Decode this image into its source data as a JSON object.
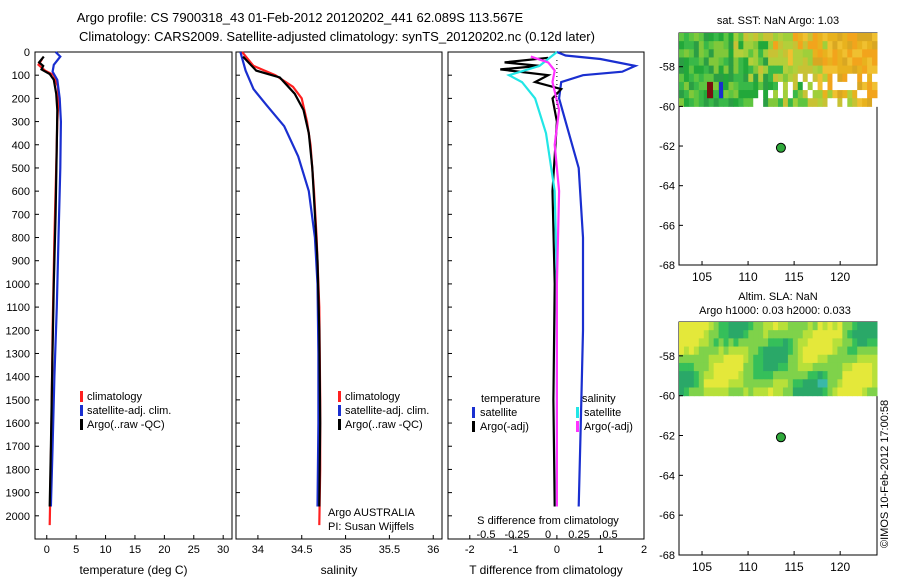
{
  "title_line1": "Argo profile: CS 7900318_43 01-Feb-2012 20120202_441 62.089S 113.567E",
  "title_line2": "Climatology: CARS2009. Satellite-adjusted climatology: synTS_20120202.nc (0.12d later)",
  "side_stamp": "©IMOS 10-Feb-2012 17:00:58",
  "colors": {
    "clim": "#ff2020",
    "sat": "#1a2fd0",
    "argo": "#000000",
    "sat_cyan": "#22e6e6",
    "argo_mag": "#ff33ff",
    "float": "#2fa83a"
  },
  "chart_data": [
    {
      "type": "line",
      "id": "temperature",
      "xlabel": "temperature (deg C)",
      "ylabel": "",
      "xlim": [
        -2,
        31.5
      ],
      "ylim": [
        2100,
        0
      ],
      "xticks": [
        0,
        5,
        10,
        15,
        20,
        25,
        30
      ],
      "yticks": [
        0,
        100,
        200,
        300,
        400,
        500,
        600,
        700,
        800,
        900,
        1000,
        1100,
        1200,
        1300,
        1400,
        1500,
        1600,
        1700,
        1800,
        1900,
        2000
      ],
      "legend": [
        "climatology",
        "satellite-adj. clim.",
        "Argo(..raw -QC)"
      ],
      "series": [
        {
          "name": "climatology",
          "color": "#ff2020",
          "points": [
            [
              -0.8,
              30
            ],
            [
              -1.4,
              55
            ],
            [
              -0.3,
              80
            ],
            [
              1.2,
              100
            ],
            [
              1.9,
              150
            ],
            [
              2.0,
              200
            ],
            [
              1.8,
              300
            ],
            [
              1.6,
              500
            ],
            [
              1.3,
              800
            ],
            [
              1.0,
              1200
            ],
            [
              0.8,
              1600
            ],
            [
              0.6,
              1900
            ],
            [
              0.5,
              2040
            ]
          ]
        },
        {
          "name": "satellite-adj. clim.",
          "color": "#1a2fd0",
          "points": [
            [
              1.5,
              0
            ],
            [
              2.3,
              20
            ],
            [
              1.2,
              55
            ],
            [
              1.0,
              85
            ],
            [
              1.8,
              120
            ],
            [
              2.2,
              200
            ],
            [
              2.4,
              300
            ],
            [
              2.3,
              500
            ],
            [
              2.0,
              800
            ],
            [
              1.7,
              1100
            ],
            [
              1.3,
              1400
            ],
            [
              1.0,
              1700
            ],
            [
              0.7,
              1960
            ]
          ]
        },
        {
          "name": "Argo(..raw -QC)",
          "color": "#000000",
          "points": [
            [
              -0.5,
              20
            ],
            [
              -1.3,
              45
            ],
            [
              -0.6,
              60
            ],
            [
              -0.9,
              75
            ],
            [
              0.5,
              95
            ],
            [
              1.2,
              120
            ],
            [
              1.6,
              180
            ],
            [
              1.8,
              250
            ],
            [
              1.7,
              400
            ],
            [
              1.5,
              700
            ],
            [
              1.2,
              1000
            ],
            [
              0.9,
              1400
            ],
            [
              0.7,
              1700
            ],
            [
              0.5,
              1960
            ]
          ]
        }
      ]
    },
    {
      "type": "line",
      "id": "salinity",
      "xlabel": "salinity",
      "ylabel": "",
      "xlim": [
        33.75,
        36.1
      ],
      "ylim": [
        2100,
        0
      ],
      "xticks": [
        34,
        34.5,
        35,
        35.5,
        36
      ],
      "xticklabels": [
        "34",
        "34.5",
        "35",
        "35.5",
        "36"
      ],
      "legend": [
        "climatology",
        "satellite-adj. clim.",
        "Argo(..raw -QC)"
      ],
      "annotation": [
        "Argo AUSTRALIA",
        "PI: Susan Wijffels"
      ],
      "series": [
        {
          "name": "climatology",
          "color": "#ff2020",
          "points": [
            [
              33.82,
              0
            ],
            [
              33.95,
              60
            ],
            [
              34.2,
              100
            ],
            [
              34.4,
              150
            ],
            [
              34.5,
              200
            ],
            [
              34.56,
              300
            ],
            [
              34.6,
              400
            ],
            [
              34.64,
              600
            ],
            [
              34.67,
              800
            ],
            [
              34.7,
              1100
            ],
            [
              34.71,
              1500
            ],
            [
              34.71,
              1800
            ],
            [
              34.7,
              2040
            ]
          ]
        },
        {
          "name": "satellite-adj. clim.",
          "color": "#1a2fd0",
          "points": [
            [
              33.8,
              0
            ],
            [
              33.86,
              80
            ],
            [
              33.95,
              160
            ],
            [
              34.1,
              230
            ],
            [
              34.3,
              320
            ],
            [
              34.46,
              450
            ],
            [
              34.58,
              600
            ],
            [
              34.65,
              800
            ],
            [
              34.68,
              1000
            ],
            [
              34.69,
              1300
            ],
            [
              34.69,
              1600
            ],
            [
              34.68,
              1960
            ]
          ]
        },
        {
          "name": "Argo(..raw -QC)",
          "color": "#000000",
          "points": [
            [
              33.83,
              20
            ],
            [
              33.98,
              80
            ],
            [
              34.25,
              110
            ],
            [
              34.42,
              180
            ],
            [
              34.52,
              250
            ],
            [
              34.58,
              350
            ],
            [
              34.62,
              500
            ],
            [
              34.65,
              700
            ],
            [
              34.68,
              900
            ],
            [
              34.7,
              1200
            ],
            [
              34.71,
              1600
            ],
            [
              34.7,
              1960
            ]
          ]
        }
      ]
    },
    {
      "type": "line",
      "id": "difference",
      "xlabel": "T difference from climatology",
      "x2label": "S difference from climatology",
      "xlim": [
        -2.5,
        2.0
      ],
      "ylim": [
        2100,
        0
      ],
      "xticks": [
        -2,
        -1,
        0,
        1,
        2
      ],
      "x2ticks": [
        -0.5,
        -0.25,
        0,
        0.25,
        0.5
      ],
      "x2ticklabels": [
        "-0.5",
        "-0.25",
        "0",
        "0.25",
        "0.5"
      ],
      "legend_titles": [
        "temperature",
        "salinity"
      ],
      "legend": [
        "satellite",
        "Argo(-adj)",
        "satellite",
        "Argo(-adj)"
      ],
      "series": [
        {
          "name": "temperature satellite",
          "color": "#1a2fd0",
          "points": [
            [
              0,
              0
            ],
            [
              0.2,
              15
            ],
            [
              1.0,
              30
            ],
            [
              1.8,
              60
            ],
            [
              1.5,
              85
            ],
            [
              0.6,
              100
            ],
            [
              0.1,
              130
            ],
            [
              0.05,
              200
            ],
            [
              0.2,
              300
            ],
            [
              0.5,
              500
            ],
            [
              0.6,
              800
            ],
            [
              0.6,
              1200
            ],
            [
              0.55,
              1600
            ],
            [
              0.5,
              1960
            ]
          ]
        },
        {
          "name": "temperature Argo(-adj)",
          "color": "#000000",
          "points": [
            [
              -0.2,
              25
            ],
            [
              -1.2,
              45
            ],
            [
              -0.4,
              60
            ],
            [
              -1.3,
              75
            ],
            [
              -0.2,
              100
            ],
            [
              -0.5,
              130
            ],
            [
              0.1,
              160
            ],
            [
              -0.1,
              200
            ],
            [
              0.0,
              300
            ],
            [
              -0.1,
              600
            ],
            [
              -0.05,
              1000
            ],
            [
              -0.08,
              1500
            ],
            [
              -0.05,
              1960
            ]
          ]
        },
        {
          "name": "salinity satellite",
          "color": "#22e6e6",
          "points": [
            [
              0,
              0
            ],
            [
              -0.4,
              60
            ],
            [
              -1.1,
              100
            ],
            [
              -0.8,
              130
            ],
            [
              -0.5,
              200
            ],
            [
              -0.25,
              350
            ],
            [
              -0.05,
              600
            ],
            [
              0.0,
              1000
            ],
            [
              0.0,
              1960
            ]
          ]
        },
        {
          "name": "salinity Argo(-adj)",
          "color": "#ff33ff",
          "points": [
            [
              -0.6,
              20
            ],
            [
              -0.2,
              45
            ],
            [
              -0.05,
              80
            ],
            [
              -0.1,
              130
            ],
            [
              0.05,
              250
            ],
            [
              -0.05,
              400
            ],
            [
              0.05,
              600
            ],
            [
              0.0,
              1000
            ],
            [
              0.0,
              1960
            ]
          ]
        }
      ]
    },
    {
      "type": "heatmap",
      "id": "sst-map",
      "title": "sat. SST: NaN Argo: 1.03",
      "xlim": [
        102.5,
        124
      ],
      "ylim": [
        -68,
        -56.3
      ],
      "xticks": [
        105,
        110,
        115,
        120
      ],
      "yticks": [
        -58,
        -60,
        -62,
        -64,
        -66,
        -68
      ],
      "float": {
        "lon": 113.567,
        "lat": -62.089
      }
    },
    {
      "type": "heatmap",
      "id": "sla-map",
      "title": "Altim. SLA: NaN",
      "subtitle": "Argo h1000: 0.03 h2000: 0.033",
      "xlim": [
        102.5,
        124
      ],
      "ylim": [
        -68,
        -56.3
      ],
      "xticks": [
        105,
        110,
        115,
        120
      ],
      "yticks": [
        -58,
        -60,
        -62,
        -64,
        -66,
        -68
      ],
      "float": {
        "lon": 113.567,
        "lat": -62.089
      }
    }
  ]
}
